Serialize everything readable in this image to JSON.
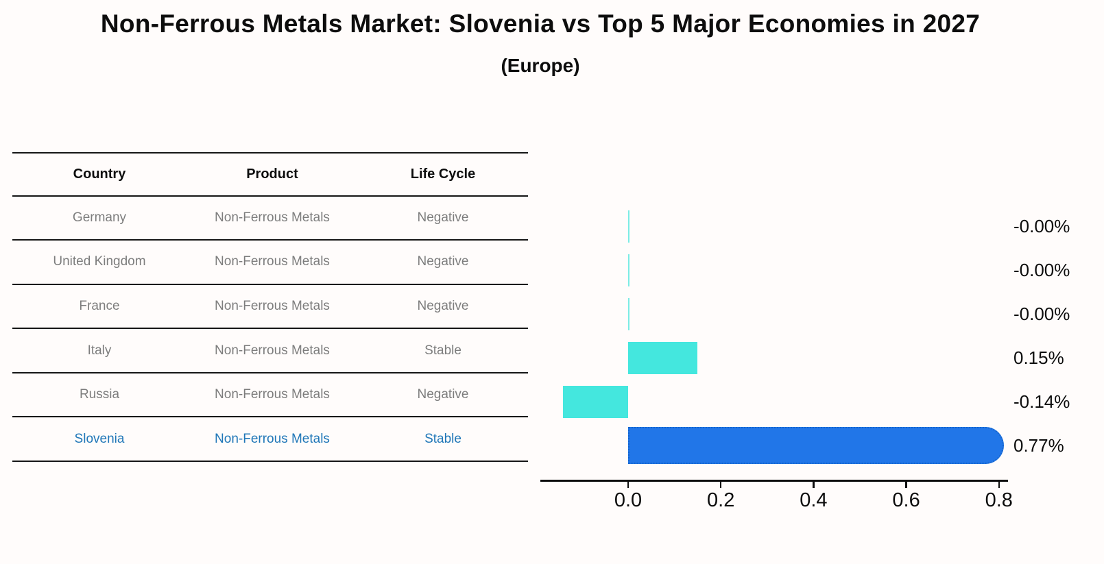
{
  "title": "Non-Ferrous Metals Market: Slovenia vs Top 5 Major Economies in 2027",
  "subtitle": "(Europe)",
  "table": {
    "headers": [
      "Country",
      "Product",
      "Life Cycle"
    ],
    "rows": [
      {
        "country": "Germany",
        "product": "Non-Ferrous Metals",
        "life_cycle": "Negative",
        "highlight": false
      },
      {
        "country": "United Kingdom",
        "product": "Non-Ferrous Metals",
        "life_cycle": "Negative",
        "highlight": false
      },
      {
        "country": "France",
        "product": "Non-Ferrous Metals",
        "life_cycle": "Negative",
        "highlight": false
      },
      {
        "country": "Italy",
        "product": "Non-Ferrous Metals",
        "life_cycle": "Stable",
        "highlight": false
      },
      {
        "country": "Russia",
        "product": "Non-Ferrous Metals",
        "life_cycle": "Negative",
        "highlight": false
      },
      {
        "country": "Slovenia",
        "product": "Non-Ferrous Metals",
        "life_cycle": "Stable",
        "highlight": true
      }
    ]
  },
  "chart_data": {
    "type": "bar",
    "orientation": "horizontal",
    "categories": [
      "Germany",
      "United Kingdom",
      "France",
      "Italy",
      "Russia",
      "Slovenia"
    ],
    "values": [
      -0.0,
      -0.0,
      -0.0,
      0.15,
      -0.14,
      0.77
    ],
    "value_labels": [
      "-0.00%",
      "-0.00%",
      "-0.00%",
      "0.15%",
      "-0.14%",
      "0.77%"
    ],
    "x_ticks": [
      0.0,
      0.2,
      0.4,
      0.6,
      0.8
    ],
    "x_tick_labels": [
      "0.0",
      "0.2",
      "0.4",
      "0.6",
      "0.8"
    ],
    "xlim": [
      -0.19,
      0.82
    ],
    "grid": false,
    "legend": "none",
    "highlight_index": 5,
    "colors": {
      "bar_default": "#44e7de",
      "bar_zero": "#7cece5",
      "bar_highlight": "#2176e8",
      "bar_highlight_border": "#1565cd",
      "table_highlight_text": "#2077b8",
      "background": "#fffcfb"
    }
  }
}
